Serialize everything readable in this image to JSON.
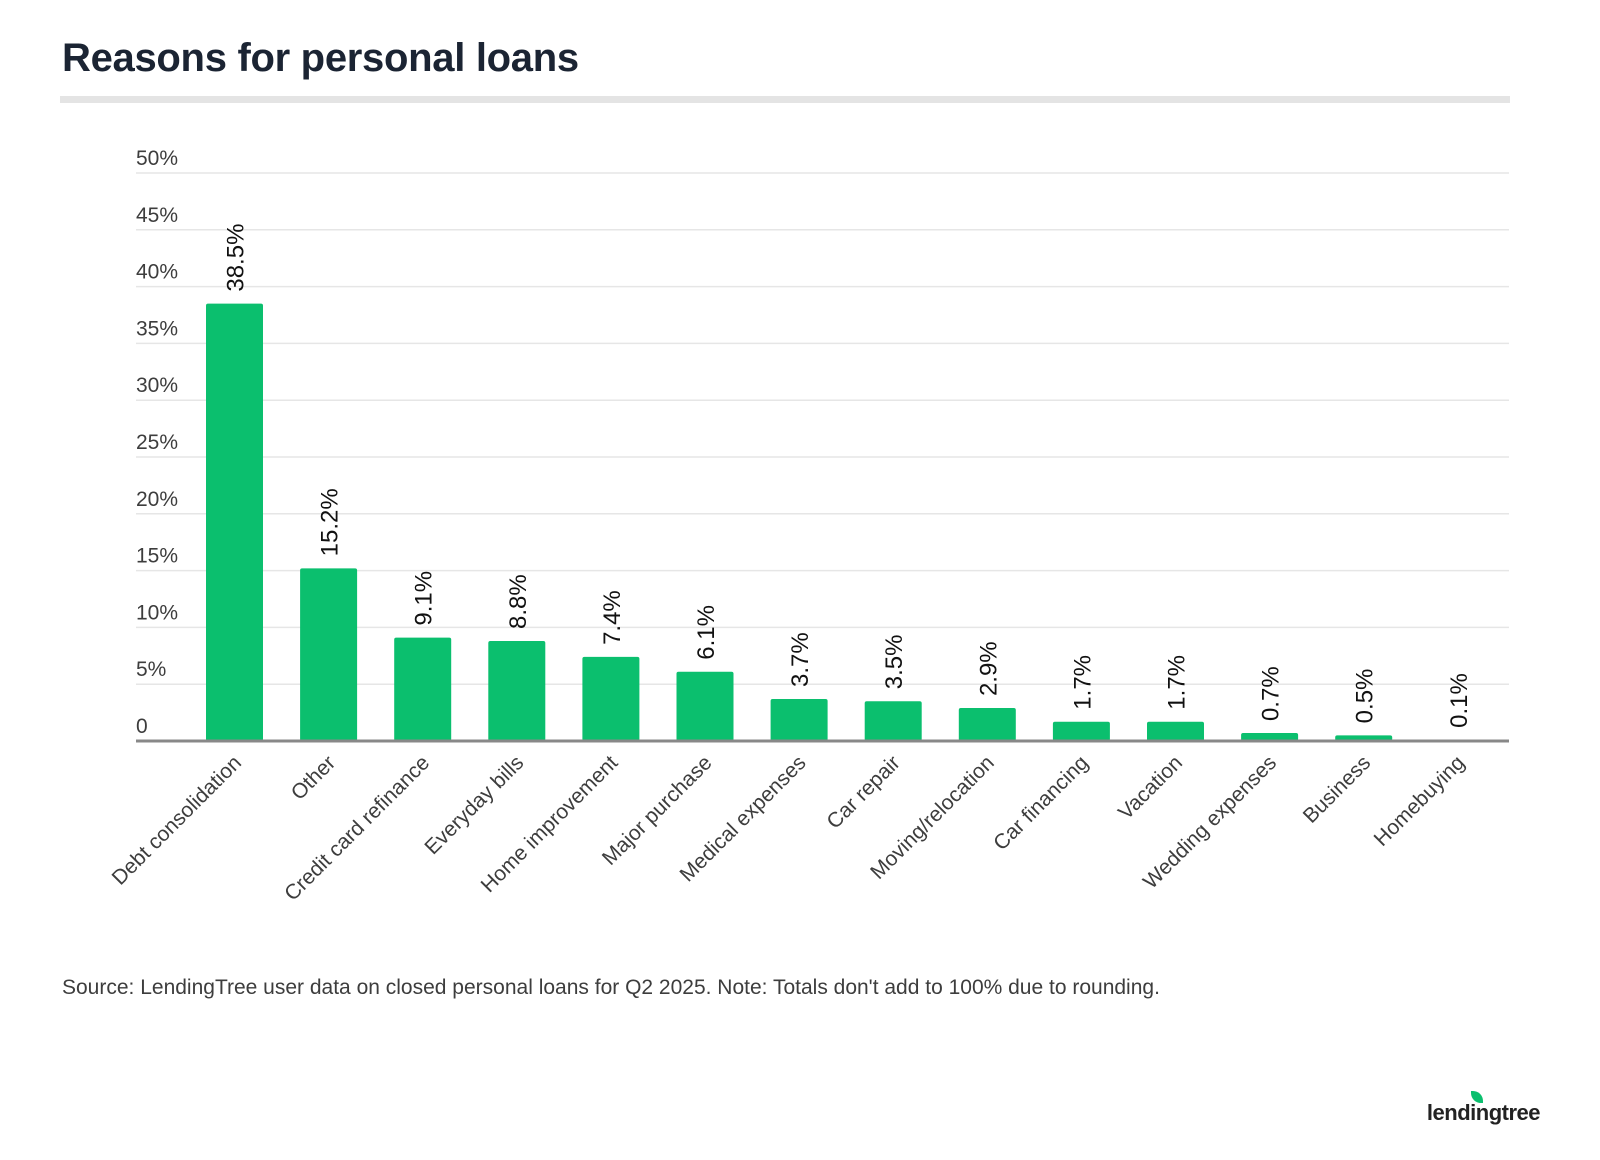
{
  "title": "Reasons for personal loans",
  "source": "Source: LendingTree user data on closed personal loans for Q2 2025. Note: Totals don't add to 100% due to rounding.",
  "logo": "lendingtree",
  "colors": {
    "bar": "#0bbf6e",
    "grid": "#e6e6e6",
    "axis": "#888888",
    "text": "#3d3d3d"
  },
  "chart_data": {
    "type": "bar",
    "title": "Reasons for personal loans",
    "categories": [
      "Debt consolidation",
      "Other",
      "Credit card refinance",
      "Everyday bills",
      "Home improvement",
      "Major purchase",
      "Medical expenses",
      "Car repair",
      "Moving/relocation",
      "Car financing",
      "Vacation",
      "Wedding expenses",
      "Business",
      "Homebuying"
    ],
    "values": [
      38.5,
      15.2,
      9.1,
      8.8,
      7.4,
      6.1,
      3.7,
      3.5,
      2.9,
      1.7,
      1.7,
      0.7,
      0.5,
      0.1
    ],
    "data_labels": [
      "38.5%",
      "15.2%",
      "9.1%",
      "8.8%",
      "7.4%",
      "6.1%",
      "3.7%",
      "3.5%",
      "2.9%",
      "1.7%",
      "1.7%",
      "0.7%",
      "0.5%",
      "0.1%"
    ],
    "y_ticks": [
      0,
      5,
      10,
      15,
      20,
      25,
      30,
      35,
      40,
      45,
      50
    ],
    "y_tick_labels": [
      "0",
      "5%",
      "10%",
      "15%",
      "20%",
      "25%",
      "30%",
      "35%",
      "40%",
      "45%",
      "50%"
    ],
    "ylim": [
      0,
      50
    ],
    "xlabel": "",
    "ylabel": "",
    "grid": true
  }
}
